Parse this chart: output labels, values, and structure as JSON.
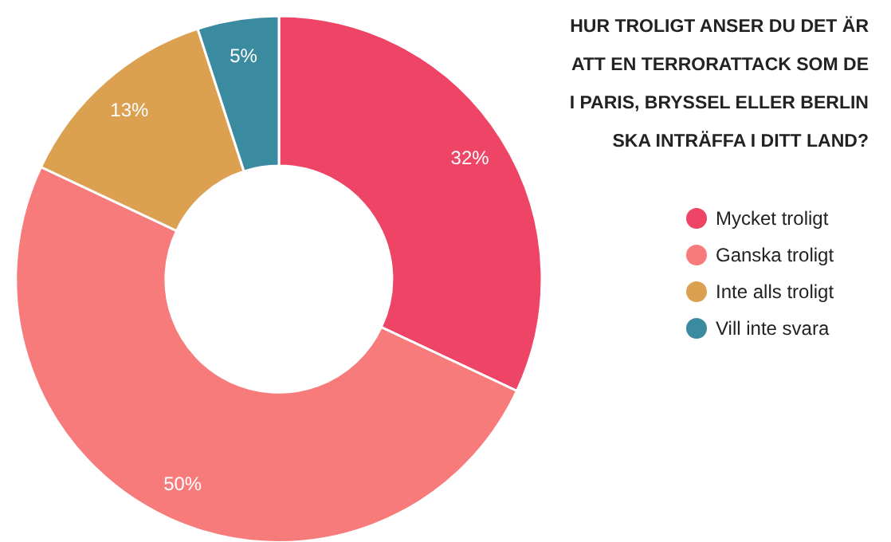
{
  "chart_data": {
    "type": "donut",
    "title": "HUR TROLIGT ANSER DU DET ÄR\nATT EN TERRORATTACK SOM DE\nI PARIS, BRYSSEL ELLER BERLIN\nSKA INTRÄFFA I DITT LAND?",
    "categories": [
      "Mycket troligt",
      "Ganska troligt",
      "Inte alls troligt",
      "Vill inte svara"
    ],
    "values": [
      32,
      50,
      13,
      5
    ],
    "colors": [
      "#ee4466",
      "#f77b7b",
      "#dba050",
      "#3a8aa0"
    ],
    "value_labels": [
      "32%",
      "50%",
      "13%",
      "5%"
    ],
    "legend": "right"
  }
}
